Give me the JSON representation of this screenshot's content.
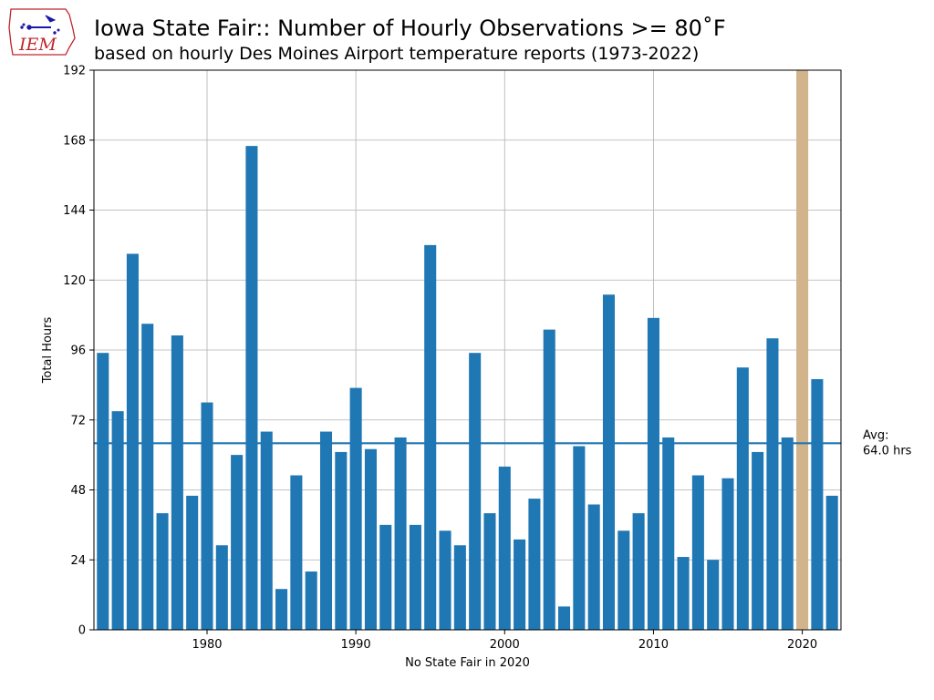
{
  "chart_data": {
    "type": "bar",
    "title": "Iowa State Fair:: Number of Hourly Observations >= 80˚F",
    "subtitle": "based on hourly Des Moines Airport temperature reports (1973-2022)",
    "xlabel": "No State Fair in 2020",
    "ylabel": "Total Hours",
    "xlim": [
      1972.4,
      2022.6
    ],
    "ylim": [
      0,
      192
    ],
    "xticks": [
      1980,
      1990,
      2000,
      2010,
      2020
    ],
    "yticks": [
      0,
      24,
      48,
      72,
      96,
      120,
      144,
      168,
      192
    ],
    "grid": true,
    "years": [
      1973,
      1974,
      1975,
      1976,
      1977,
      1978,
      1979,
      1980,
      1981,
      1982,
      1983,
      1984,
      1985,
      1986,
      1987,
      1988,
      1989,
      1990,
      1991,
      1992,
      1993,
      1994,
      1995,
      1996,
      1997,
      1998,
      1999,
      2000,
      2001,
      2002,
      2003,
      2004,
      2005,
      2006,
      2007,
      2008,
      2009,
      2010,
      2011,
      2012,
      2013,
      2014,
      2015,
      2016,
      2017,
      2018,
      2019,
      2020,
      2021,
      2022
    ],
    "values": [
      95,
      75,
      129,
      105,
      40,
      101,
      46,
      78,
      29,
      60,
      166,
      68,
      14,
      53,
      20,
      68,
      61,
      83,
      62,
      36,
      66,
      36,
      132,
      34,
      29,
      95,
      40,
      56,
      31,
      45,
      103,
      8,
      63,
      43,
      115,
      34,
      40,
      107,
      66,
      25,
      53,
      24,
      52,
      90,
      61,
      100,
      66,
      192,
      86,
      46
    ],
    "highlight_year": 2020,
    "bar_color": "#1f77b4",
    "highlight_color": "#d2b48c",
    "average": 64.0,
    "average_line_color": "#1f77b4",
    "average_label": [
      "Avg:",
      "64.0 hrs"
    ]
  },
  "logo": {
    "text": "IEM",
    "color": "#c0262d",
    "accent_color": "#1a1aa6"
  }
}
